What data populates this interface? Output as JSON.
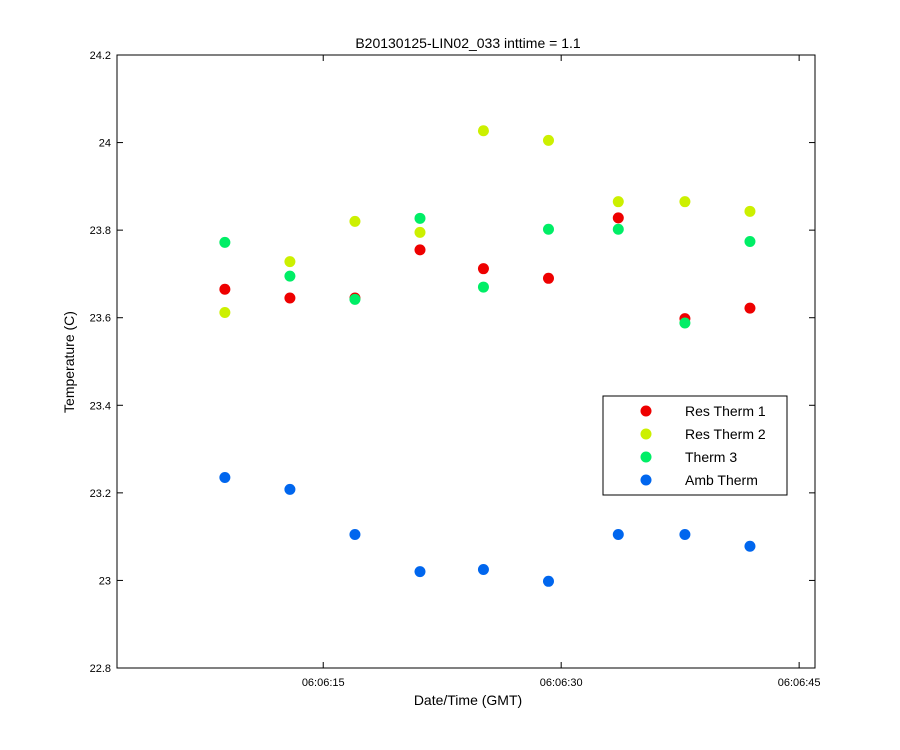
{
  "chart_data": {
    "type": "scatter",
    "title": "B20130125-LIN02_033 inttime = 1.1",
    "xlabel": "Date/Time (GMT)",
    "ylabel": "Temperature (C)",
    "ylim": [
      22.8,
      24.2
    ],
    "yticks": [
      22.8,
      23,
      23.2,
      23.4,
      23.6,
      23.8,
      24,
      24.2
    ],
    "ytick_labels": [
      "22.8",
      "23",
      "23.2",
      "23.4",
      "23.6",
      "23.8",
      "24",
      "24.2"
    ],
    "xlim": [
      "06:06:02",
      "06:06:46"
    ],
    "xticks": [
      "06:06:15",
      "06:06:30",
      "06:06:45"
    ],
    "xtick_labels": [
      "06:06:15",
      "06:06:30",
      "06:06:45"
    ],
    "x": [
      "06:06:08.8",
      "06:06:12.9",
      "06:06:17.0",
      "06:06:21.1",
      "06:06:25.1",
      "06:06:29.2",
      "06:06:33.6",
      "06:06:37.8",
      "06:06:41.9"
    ],
    "series": [
      {
        "name": "Res Therm 1",
        "color": "#ee0000",
        "values": [
          23.665,
          23.645,
          23.645,
          23.755,
          23.712,
          23.69,
          23.828,
          23.598,
          23.622
        ]
      },
      {
        "name": "Res Therm 2",
        "color": "#ccf000",
        "values": [
          23.612,
          23.728,
          23.82,
          23.795,
          24.027,
          24.005,
          23.865,
          23.865,
          23.843
        ]
      },
      {
        "name": "Therm 3",
        "color": "#00ee66",
        "values": [
          23.772,
          23.695,
          23.642,
          23.827,
          23.67,
          23.802,
          23.802,
          23.588,
          23.774
        ]
      },
      {
        "name": "Amb Therm",
        "color": "#0066ee",
        "values": [
          23.235,
          23.208,
          23.105,
          23.02,
          23.025,
          22.998,
          23.105,
          23.105,
          23.078
        ]
      }
    ],
    "legend_position": "lower-right",
    "grid": false
  }
}
